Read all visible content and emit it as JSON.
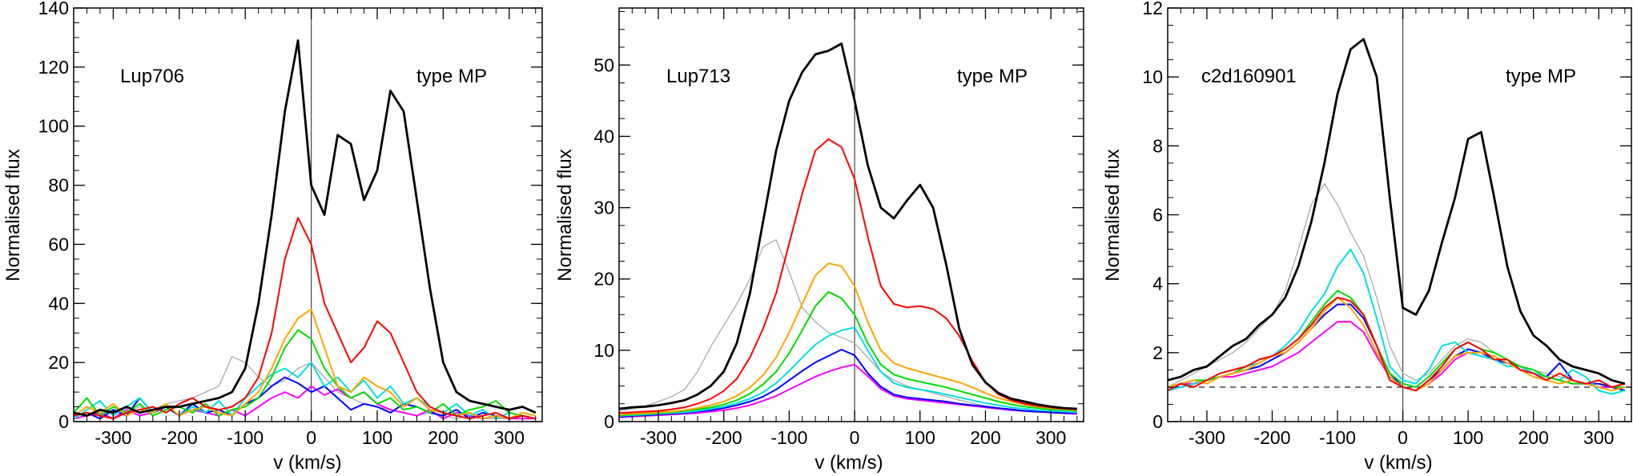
{
  "colors": {
    "axes": "#000000",
    "zero_line": "#444444",
    "continuum_line": "#333333",
    "series": [
      "#000000",
      "#ff0000",
      "#ffa500",
      "#00dd00",
      "#00e0e0",
      "#0000ff",
      "#ff00ff",
      "#aaaaaa"
    ]
  },
  "chart_data": [
    {
      "type": "line",
      "annotation_left": "Lup706",
      "annotation_right": "type MP",
      "xlabel": "v (km/s)",
      "ylabel": "Normalised flux",
      "xlim": [
        -360,
        350
      ],
      "ylim": [
        0,
        140
      ],
      "xticks": [
        -300,
        -200,
        -100,
        0,
        100,
        200,
        300
      ],
      "yticks": [
        0,
        20,
        40,
        60,
        80,
        100,
        120,
        140
      ],
      "continuum": null,
      "x": [
        -360,
        -340,
        -320,
        -300,
        -280,
        -260,
        -240,
        -220,
        -200,
        -180,
        -160,
        -140,
        -120,
        -100,
        -80,
        -60,
        -40,
        -20,
        0,
        20,
        40,
        60,
        80,
        100,
        120,
        140,
        160,
        180,
        200,
        220,
        240,
        260,
        280,
        300,
        320,
        340
      ],
      "series": [
        {
          "values": [
            3,
            2,
            4,
            3,
            5,
            3,
            4,
            5,
            5,
            6,
            7,
            8,
            10,
            18,
            40,
            70,
            105,
            129,
            80,
            70,
            97,
            94,
            75,
            85,
            112,
            105,
            75,
            45,
            20,
            10,
            7,
            6,
            5,
            4,
            5,
            3
          ]
        },
        {
          "values": [
            2,
            3,
            2,
            1,
            3,
            4,
            5,
            3,
            6,
            8,
            5,
            4,
            5,
            8,
            15,
            30,
            55,
            69,
            60,
            40,
            30,
            20,
            25,
            34,
            30,
            20,
            10,
            5,
            3,
            2,
            1,
            2,
            3,
            1,
            2,
            1
          ]
        },
        {
          "values": [
            2,
            5,
            3,
            6,
            2,
            4,
            3,
            6,
            2,
            4,
            5,
            3,
            2,
            6,
            10,
            18,
            28,
            35,
            38,
            25,
            12,
            10,
            15,
            12,
            10,
            5,
            8,
            4,
            3,
            2,
            3,
            1,
            2,
            1,
            3,
            2
          ]
        },
        {
          "values": [
            3,
            8,
            2,
            5,
            3,
            6,
            2,
            4,
            5,
            3,
            6,
            2,
            4,
            5,
            8,
            15,
            25,
            31,
            28,
            18,
            12,
            8,
            10,
            6,
            8,
            4,
            5,
            3,
            6,
            2,
            4,
            5,
            7,
            3,
            2,
            1
          ]
        },
        {
          "values": [
            1,
            4,
            7,
            2,
            5,
            8,
            3,
            6,
            2,
            5,
            3,
            7,
            2,
            8,
            12,
            16,
            18,
            15,
            20,
            12,
            15,
            10,
            14,
            8,
            12,
            6,
            8,
            5,
            3,
            6,
            2,
            4,
            1,
            3,
            2,
            1
          ]
        },
        {
          "values": [
            2,
            3,
            1,
            4,
            2,
            8,
            3,
            5,
            2,
            6,
            3,
            4,
            2,
            6,
            8,
            12,
            15,
            13,
            10,
            12,
            8,
            4,
            6,
            5,
            3,
            6,
            5,
            3,
            2,
            4,
            1,
            3,
            2,
            1,
            2,
            1
          ]
        },
        {
          "values": [
            1,
            2,
            3,
            1,
            4,
            2,
            3,
            5,
            2,
            4,
            3,
            2,
            4,
            2,
            5,
            8,
            10,
            8,
            12,
            9,
            11,
            8,
            10,
            6,
            4,
            3,
            2,
            4,
            1,
            3,
            2,
            1,
            2,
            1,
            1,
            1
          ]
        },
        {
          "values": [
            2,
            3,
            2,
            4,
            3,
            5,
            4,
            6,
            7,
            8,
            10,
            12,
            22,
            20,
            15,
            12,
            14,
            18,
            20,
            15,
            10,
            8,
            6,
            5,
            4,
            3,
            2,
            3,
            2,
            1,
            2,
            1,
            1,
            1,
            1,
            1
          ]
        }
      ]
    },
    {
      "type": "line",
      "annotation_left": "Lup713",
      "annotation_right": "type MP",
      "xlabel": "v (km/s)",
      "ylabel": "Normalised flux",
      "xlim": [
        -360,
        350
      ],
      "ylim": [
        0,
        58
      ],
      "xticks": [
        -300,
        -200,
        -100,
        0,
        100,
        200,
        300
      ],
      "yticks": [
        0,
        10,
        20,
        30,
        40,
        50
      ],
      "continuum": null,
      "x": [
        -360,
        -340,
        -320,
        -300,
        -280,
        -260,
        -240,
        -220,
        -200,
        -180,
        -160,
        -140,
        -120,
        -100,
        -80,
        -60,
        -40,
        -20,
        0,
        20,
        40,
        60,
        80,
        100,
        120,
        140,
        160,
        180,
        200,
        220,
        240,
        260,
        280,
        300,
        320,
        340
      ],
      "series": [
        {
          "values": [
            1.8,
            2,
            2.1,
            2.3,
            2.6,
            3,
            3.8,
            5,
            7,
            11,
            18,
            28,
            38,
            45,
            49,
            51.5,
            52,
            53,
            45,
            36,
            30,
            28.5,
            31,
            33.2,
            30,
            22,
            13,
            8,
            5.5,
            4,
            3.2,
            2.8,
            2.4,
            2.1,
            1.9,
            1.8
          ]
        },
        {
          "values": [
            1.2,
            1.3,
            1.4,
            1.5,
            1.7,
            2,
            2.5,
            3.2,
            4.3,
            6,
            9,
            13,
            18,
            25,
            32,
            38,
            39.6,
            38.5,
            34,
            26,
            19,
            16.5,
            16,
            16.2,
            15.8,
            14.5,
            12,
            8.5,
            5.5,
            3.8,
            3,
            2.5,
            2.2,
            2,
            1.8,
            1.7
          ]
        },
        {
          "values": [
            1,
            1.1,
            1.2,
            1.3,
            1.4,
            1.6,
            1.9,
            2.3,
            2.8,
            3.6,
            4.8,
            6.5,
            9,
            12.5,
            16.5,
            20.5,
            22.2,
            21.8,
            19,
            14,
            10,
            8.2,
            7.5,
            7,
            6.5,
            6,
            5.5,
            4.8,
            4,
            3.3,
            2.8,
            2.4,
            2.1,
            1.9,
            1.7,
            1.6
          ]
        },
        {
          "values": [
            0.9,
            1,
            1.1,
            1.2,
            1.3,
            1.5,
            1.7,
            2,
            2.4,
            3,
            3.9,
            5.2,
            7,
            9.6,
            12.8,
            16.2,
            18.2,
            17.3,
            15,
            11,
            8,
            6.6,
            6,
            5.6,
            5.2,
            4.8,
            4.3,
            3.8,
            3.3,
            2.8,
            2.4,
            2.1,
            1.9,
            1.7,
            1.6,
            1.5
          ]
        },
        {
          "values": [
            0.8,
            0.9,
            1,
            1.1,
            1.2,
            1.3,
            1.5,
            1.8,
            2.1,
            2.6,
            3.2,
            4.1,
            5.4,
            7.1,
            9,
            10.8,
            12,
            12.8,
            13.2,
            10,
            7,
            5.4,
            4.8,
            4.5,
            4.2,
            3.8,
            3.4,
            3,
            2.6,
            2.3,
            2,
            1.8,
            1.6,
            1.5,
            1.4,
            1.3
          ]
        },
        {
          "values": [
            0.7,
            0.8,
            0.9,
            1,
            1.1,
            1.2,
            1.4,
            1.6,
            1.9,
            2.3,
            2.8,
            3.5,
            4.5,
            5.8,
            7.1,
            8.3,
            9.2,
            10.1,
            9.3,
            6.8,
            4.9,
            3.8,
            3.4,
            3.2,
            3,
            2.8,
            2.5,
            2.3,
            2.1,
            1.9,
            1.7,
            1.5,
            1.4,
            1.3,
            1.2,
            1.2
          ]
        },
        {
          "values": [
            0.6,
            0.7,
            0.8,
            0.9,
            1,
            1.1,
            1.2,
            1.4,
            1.6,
            1.9,
            2.3,
            2.9,
            3.6,
            4.5,
            5.4,
            6.3,
            7,
            7.6,
            8,
            6.4,
            4.6,
            3.6,
            3.2,
            3,
            2.8,
            2.6,
            2.4,
            2.2,
            2,
            1.8,
            1.6,
            1.5,
            1.4,
            1.3,
            1.2,
            1.1
          ]
        },
        {
          "values": [
            1.5,
            1.8,
            2.2,
            2.8,
            3.5,
            4.5,
            7,
            10.5,
            13.5,
            16.5,
            20,
            24.5,
            25.5,
            21,
            16,
            14,
            12.5,
            11.8,
            11,
            9,
            7,
            5.8,
            5,
            4.5,
            4,
            3.5,
            3,
            2.6,
            2.2,
            1.9,
            1.6,
            1.4,
            1.3,
            1.2,
            1.1,
            1
          ]
        }
      ]
    },
    {
      "type": "line",
      "annotation_left": "c2d160901",
      "annotation_right": "type MP",
      "xlabel": "v (km/s)",
      "ylabel": "Normalised flux",
      "xlim": [
        -360,
        350
      ],
      "ylim": [
        0,
        12
      ],
      "xticks": [
        -300,
        -200,
        -100,
        0,
        100,
        200,
        300
      ],
      "yticks": [
        0,
        2,
        4,
        6,
        8,
        10,
        12
      ],
      "continuum": 1,
      "x": [
        -360,
        -340,
        -320,
        -300,
        -280,
        -260,
        -240,
        -220,
        -200,
        -180,
        -160,
        -140,
        -120,
        -100,
        -80,
        -60,
        -40,
        -20,
        0,
        20,
        40,
        60,
        80,
        100,
        120,
        140,
        160,
        180,
        200,
        220,
        240,
        260,
        280,
        300,
        320,
        340
      ],
      "series": [
        {
          "values": [
            1.2,
            1.3,
            1.5,
            1.6,
            1.9,
            2.2,
            2.4,
            2.8,
            3.1,
            3.6,
            4.5,
            5.8,
            7.5,
            9.5,
            10.8,
            11.1,
            10,
            6.5,
            3.3,
            3.1,
            3.8,
            5.2,
            6.5,
            8.2,
            8.4,
            6.5,
            4.5,
            3.2,
            2.5,
            2.2,
            1.8,
            1.6,
            1.5,
            1.4,
            1.2,
            1.1
          ]
        },
        {
          "values": [
            0.9,
            1.1,
            1,
            1.2,
            1.4,
            1.5,
            1.6,
            1.8,
            1.9,
            2.1,
            2.4,
            2.8,
            3.3,
            3.6,
            3.5,
            3.1,
            2.2,
            1.2,
            1,
            0.9,
            1.2,
            1.6,
            2.1,
            2.3,
            2.1,
            1.8,
            1.8,
            1.5,
            1.4,
            1.2,
            1.4,
            1.2,
            1.1,
            1.2,
            1,
            1.1
          ]
        },
        {
          "values": [
            1,
            1.1,
            1.2,
            1.1,
            1.3,
            1.4,
            1.5,
            1.7,
            1.9,
            2,
            2.3,
            2.7,
            3.2,
            3.6,
            3.3,
            2.8,
            2,
            1.3,
            1,
            0.9,
            1.1,
            1.5,
            1.9,
            2,
            2,
            1.9,
            1.7,
            1.5,
            1.3,
            1.2,
            1.1,
            1.2,
            1.1,
            1,
            0.9,
            1
          ]
        },
        {
          "values": [
            1,
            1.1,
            1.2,
            1.2,
            1.3,
            1.4,
            1.6,
            1.8,
            1.9,
            2.1,
            2.4,
            2.9,
            3.4,
            3.8,
            3.6,
            3.1,
            2.2,
            1.4,
            1.1,
            1,
            1.3,
            1.7,
            2.1,
            2.3,
            2.1,
            2,
            1.8,
            1.6,
            1.5,
            1.3,
            1.2,
            1.1,
            1.1,
            1.2,
            1,
            1
          ]
        },
        {
          "values": [
            0.9,
            1,
            1.1,
            1.2,
            1.3,
            1.4,
            1.6,
            1.7,
            1.9,
            2.2,
            2.6,
            3.2,
            3.7,
            4.5,
            5,
            4.3,
            3,
            1.6,
            1.2,
            1.1,
            1.5,
            2.2,
            2.3,
            2,
            1.9,
            1.8,
            1.6,
            1.6,
            1.4,
            1.3,
            1.2,
            1.5,
            1.3,
            0.9,
            0.8,
            0.9
          ]
        },
        {
          "values": [
            1,
            1,
            1.1,
            1.2,
            1.3,
            1.4,
            1.5,
            1.6,
            1.8,
            2,
            2.3,
            2.7,
            3.1,
            3.4,
            3.4,
            3,
            2.2,
            1.4,
            1,
            0.9,
            1.2,
            1.5,
            1.9,
            2.1,
            2,
            1.8,
            1.7,
            1.6,
            1.4,
            1.3,
            1.7,
            1.2,
            1.1,
            1.1,
            1,
            0.9
          ]
        },
        {
          "values": [
            1,
            1.1,
            1.1,
            1.2,
            1.3,
            1.3,
            1.4,
            1.5,
            1.6,
            1.8,
            2,
            2.3,
            2.6,
            2.9,
            2.9,
            2.6,
            1.9,
            1.3,
            1,
            0.9,
            1.1,
            1.4,
            1.8,
            2,
            1.9,
            1.8,
            1.7,
            1.5,
            1.4,
            1.3,
            1.2,
            1.1,
            1.1,
            1,
            1,
            0.9
          ]
        },
        {
          "values": [
            1,
            1.2,
            1.4,
            1.6,
            1.8,
            2,
            2.3,
            2.7,
            3.1,
            3.8,
            5,
            6.3,
            6.9,
            6.3,
            5.5,
            4.8,
            3.6,
            2.2,
            1.4,
            1.2,
            1.4,
            1.8,
            2.2,
            2.4,
            2.3,
            2,
            1.8,
            1.6,
            1.5,
            1.4,
            1.3,
            1.2,
            1.1,
            1.1,
            1,
            1
          ]
        }
      ]
    }
  ]
}
